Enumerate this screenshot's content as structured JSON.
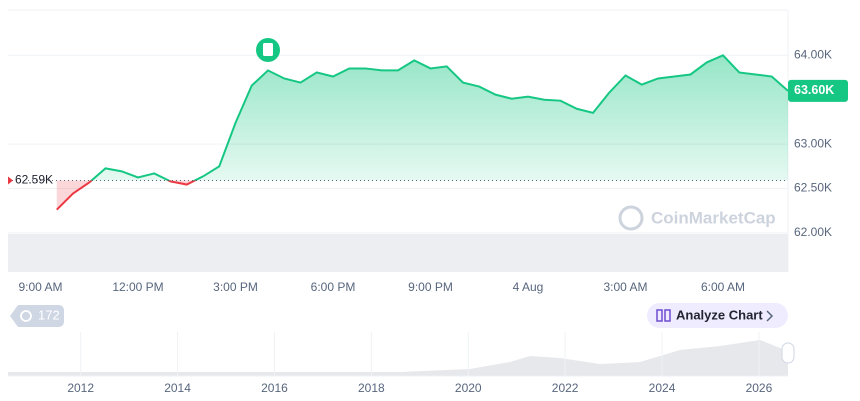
{
  "chart_data": {
    "type": "line",
    "categories": [
      null,
      null,
      "9:00 AM",
      null,
      null,
      null,
      null,
      null,
      "12:00 PM",
      null,
      null,
      null,
      null,
      null,
      "3:00 PM",
      null,
      null,
      null,
      null,
      null,
      "6:00 PM",
      null,
      null,
      null,
      null,
      null,
      "9:00 PM",
      null,
      null,
      null,
      null,
      null,
      "4 Aug",
      null,
      null,
      null,
      null,
      null,
      "3:00 AM",
      null,
      null,
      null,
      null,
      null,
      "6:00 AM",
      null,
      null,
      null,
      null
    ],
    "values": [
      null,
      null,
      null,
      62262,
      62443,
      62568,
      62727,
      62693,
      62625,
      62670,
      62580,
      62545,
      62636,
      62750,
      63239,
      63659,
      63830,
      63739,
      63693,
      63807,
      63761,
      63852,
      63852,
      63830,
      63830,
      63943,
      63852,
      63875,
      63693,
      63648,
      63557,
      63511,
      63534,
      63500,
      63489,
      63398,
      63352,
      63580,
      63773,
      63670,
      63739,
      63761,
      63784,
      63920,
      64000,
      63807,
      63784,
      63761,
      63600
    ],
    "up_color": "#16c784",
    "down_color": "#ea3943",
    "ylim": [
      61560,
      64510
    ],
    "yticks": [
      {
        "value": 64000,
        "label": "64.00K"
      },
      {
        "value": 63000,
        "label": "63.00K"
      },
      {
        "value": 62500,
        "label": "62.50K"
      },
      {
        "value": 62000,
        "label": "62.00K"
      }
    ],
    "grid": true,
    "reference_line": {
      "value": 62590,
      "label": "62.59K"
    },
    "last_price": {
      "value": 63600,
      "label": "63.60K"
    },
    "watermark": "CoinMarketCap",
    "badge": "172",
    "button": "Analyze Chart",
    "navigator": {
      "xlim": [
        2010.5,
        2026.6
      ],
      "xticks": [
        2012,
        2014,
        2016,
        2018,
        2020,
        2022,
        2024,
        2026
      ]
    }
  }
}
